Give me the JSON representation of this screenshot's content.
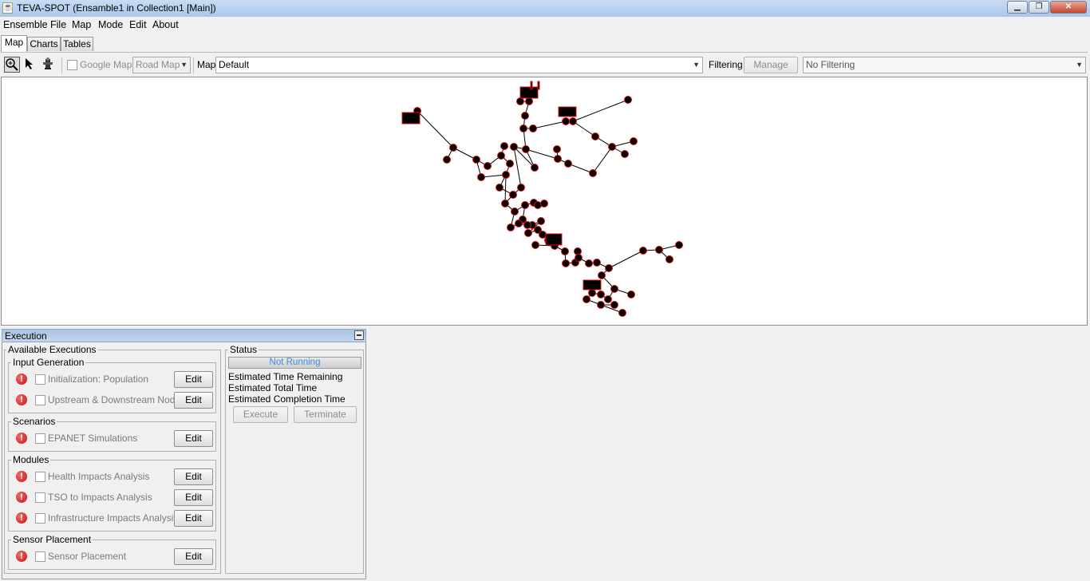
{
  "window": {
    "title": "TEVA-SPOT (Ensamble1 in Collection1 [Main])"
  },
  "menu": [
    "Ensemble",
    "File",
    "Map",
    "Mode",
    "Edit",
    "About"
  ],
  "tabs": [
    "Map",
    "Charts",
    "Tables"
  ],
  "toolbar": {
    "google_maps_label": "Google Maps",
    "map_type_value": "Road Map",
    "map_label": "Map",
    "map_value": "Default",
    "filtering_label": "Filtering",
    "manage_label": "Manage",
    "filtering_value": "No Filtering"
  },
  "execution": {
    "title": "Execution",
    "available_title": "Available Executions",
    "edit_label": "Edit",
    "groups": [
      {
        "title": "Input Generation",
        "items": [
          "Initialization: Population",
          "Upstream & Downstream Nodes"
        ]
      },
      {
        "title": "Scenarios",
        "items": [
          "EPANET Simulations"
        ]
      },
      {
        "title": "Modules",
        "items": [
          "Health Impacts Analysis",
          "TSO to Impacts Analysis",
          "Infrastructure Impacts Analysis"
        ]
      },
      {
        "title": "Sensor Placement",
        "items": [
          "Sensor Placement"
        ]
      }
    ],
    "status": {
      "title": "Status",
      "progress_text": "Not Running",
      "time_remaining": "Estimated Time Remaining",
      "total_time": "Estimated Total Time",
      "completion_time": "Estimated Completion Time",
      "execute_label": "Execute",
      "terminate_label": "Terminate"
    }
  },
  "colors": {
    "node_fill": "#000000",
    "node_stroke": "#e01010",
    "pipe": "#000000",
    "progress_text": "#3b8fe0",
    "error_icon": "#d01818"
  }
}
